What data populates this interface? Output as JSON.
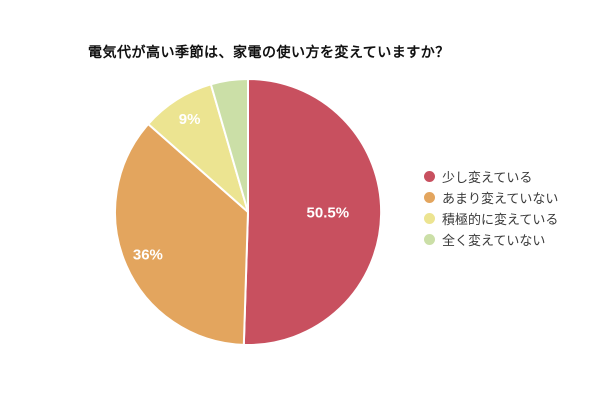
{
  "chart_data": {
    "type": "pie",
    "title": "電気代が高い季節は、家電の使い方を変えていますか？",
    "legend_position": "right",
    "start_angle_deg": 0,
    "direction": "clockwise",
    "background_color": "#ffffff",
    "slice_stroke_color": "#ffffff",
    "value_label_color": "#ffffff",
    "segments": [
      {
        "label": "少し変えている",
        "value": 50.5,
        "display": "50.5%",
        "color": "#c8505f"
      },
      {
        "label": "あまり変えていない",
        "value": 36.0,
        "display": "36%",
        "color": "#e3a55e"
      },
      {
        "label": "積極的に変えている",
        "value": 9.0,
        "display": "9%",
        "color": "#ece491"
      },
      {
        "label": "全く変えていない",
        "value": 4.5,
        "display": "",
        "color": "#cbdfa7"
      }
    ]
  }
}
